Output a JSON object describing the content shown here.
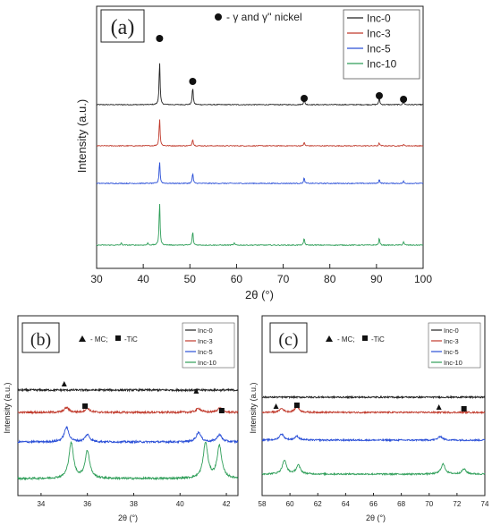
{
  "chart_data": [
    {
      "panel_label": "(a)",
      "type": "line",
      "xlabel": "2θ (°)",
      "ylabel": "Intensity (a.u.)",
      "xlim": [
        30,
        100
      ],
      "x_ticks": [
        "30",
        "40",
        "50",
        "60",
        "70",
        "80",
        "90",
        "100"
      ],
      "annotation": "- γ and γ'' nickel",
      "marker_symbol": "●",
      "markers_x": [
        43.5,
        50.6,
        74.5,
        90.6,
        95.8
      ],
      "legend": {
        "placement": "top-right"
      },
      "series": [
        {
          "name": "Inc-0",
          "color": "#222222",
          "baseline": 0,
          "peaks": [
            [
              43.5,
              0.62
            ],
            [
              50.6,
              0.26
            ],
            [
              74.5,
              0.09
            ],
            [
              90.6,
              0.1
            ],
            [
              95.8,
              0.05
            ]
          ]
        },
        {
          "name": "Inc-3",
          "color": "#c0392b",
          "baseline": 0,
          "peaks": [
            [
              43.5,
              0.4
            ],
            [
              50.6,
              0.1
            ],
            [
              74.5,
              0.05
            ],
            [
              90.6,
              0.04
            ],
            [
              95.8,
              0.02
            ]
          ]
        },
        {
          "name": "Inc-5",
          "color": "#2a4fd7",
          "baseline": 0,
          "peaks": [
            [
              43.5,
              0.32
            ],
            [
              50.6,
              0.15
            ],
            [
              74.5,
              0.08
            ],
            [
              90.6,
              0.06
            ],
            [
              95.8,
              0.03
            ]
          ]
        },
        {
          "name": "Inc-10",
          "color": "#2e9e58",
          "baseline": 0,
          "peaks": [
            [
              35.3,
              0.03
            ],
            [
              41.0,
              0.03
            ],
            [
              43.5,
              0.62
            ],
            [
              50.6,
              0.2
            ],
            [
              59.5,
              0.03
            ],
            [
              74.5,
              0.1
            ],
            [
              90.6,
              0.1
            ],
            [
              95.8,
              0.05
            ]
          ]
        }
      ]
    },
    {
      "panel_label": "(b)",
      "type": "line",
      "xlabel": "2θ (°)",
      "ylabel": "Intensity (a.u.)",
      "xlim": [
        33,
        42.5
      ],
      "x_ticks": [
        "34",
        "36",
        "38",
        "40",
        "42"
      ],
      "annotation_mc": "- MC;",
      "annotation_tic": "-TiC",
      "triangle_markers_x": [
        35.0,
        40.7
      ],
      "square_markers_x": [
        35.9,
        41.8
      ],
      "legend": {
        "placement": "top-right"
      },
      "series": [
        {
          "name": "Inc-0",
          "color": "#222222",
          "peaks": []
        },
        {
          "name": "Inc-3",
          "color": "#c0392b",
          "peaks": [
            [
              35.1,
              0.3
            ],
            [
              36.0,
              0.25
            ],
            [
              40.8,
              0.25
            ],
            [
              41.7,
              0.25
            ]
          ]
        },
        {
          "name": "Inc-5",
          "color": "#2a4fd7",
          "peaks": [
            [
              35.1,
              0.9
            ],
            [
              36.0,
              0.45
            ],
            [
              40.8,
              0.6
            ],
            [
              41.7,
              0.45
            ]
          ]
        },
        {
          "name": "Inc-10",
          "color": "#2e9e58",
          "peaks": [
            [
              35.3,
              2.2
            ],
            [
              36.0,
              1.7
            ],
            [
              41.1,
              2.2
            ],
            [
              41.7,
              2.0
            ]
          ]
        }
      ]
    },
    {
      "panel_label": "(c)",
      "type": "line",
      "xlabel": "2θ (°)",
      "ylabel": "Intensity (a.u.)",
      "xlim": [
        58,
        74
      ],
      "x_ticks": [
        "58",
        "60",
        "62",
        "64",
        "66",
        "68",
        "70",
        "72",
        "74"
      ],
      "annotation_mc": "- MC;",
      "annotation_tic": "-TiC",
      "triangle_markers_x": [
        59.0,
        70.7
      ],
      "square_markers_x": [
        60.5,
        72.5
      ],
      "legend": {
        "placement": "top-right"
      },
      "series": [
        {
          "name": "Inc-0",
          "color": "#222222",
          "peaks": []
        },
        {
          "name": "Inc-3",
          "color": "#c0392b",
          "peaks": [
            [
              59.4,
              0.3
            ],
            [
              60.5,
              0.45
            ]
          ]
        },
        {
          "name": "Inc-5",
          "color": "#2a4fd7",
          "peaks": [
            [
              59.4,
              0.5
            ],
            [
              60.5,
              0.3
            ],
            [
              70.8,
              0.3
            ]
          ]
        },
        {
          "name": "Inc-10",
          "color": "#2e9e58",
          "peaks": [
            [
              59.6,
              1.1
            ],
            [
              60.6,
              0.7
            ],
            [
              71.0,
              0.8
            ],
            [
              72.5,
              0.4
            ]
          ]
        }
      ]
    }
  ]
}
